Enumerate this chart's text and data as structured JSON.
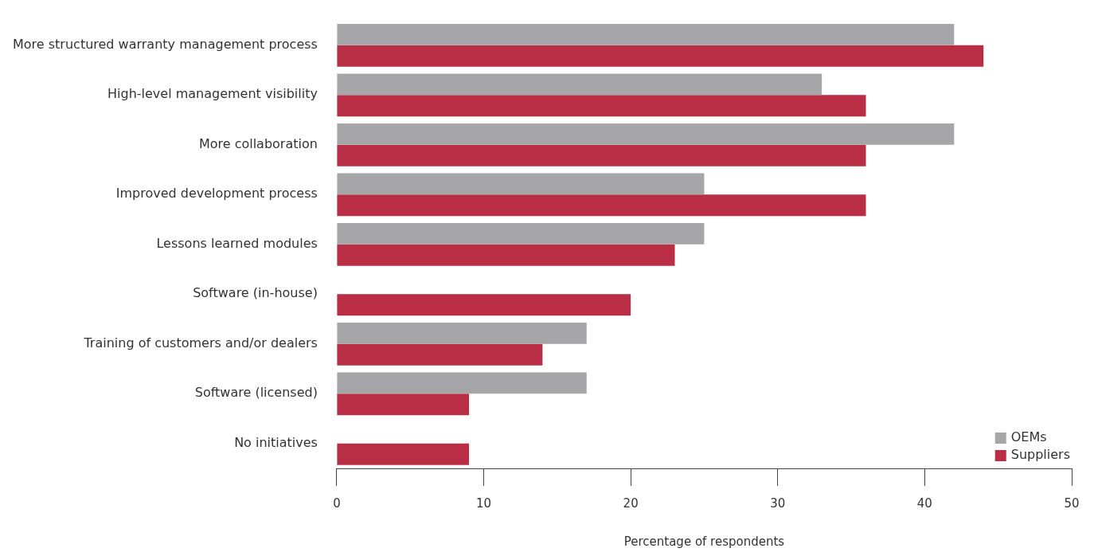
{
  "chart_data": {
    "type": "bar",
    "orientation": "horizontal",
    "xlabel": "Percentage of respondents",
    "categories": [
      "More structured warranty management process",
      "High-level management visibility",
      "More collaboration",
      "Improved development process",
      "Lessons learned modules",
      "Software (in-house)",
      "Training of customers and/or dealers",
      "Software (licensed)",
      "No initiatives"
    ],
    "series": [
      {
        "name": "OEMs",
        "color": "#a6a6a9",
        "values": [
          42,
          33,
          42,
          25,
          25,
          0,
          17,
          17,
          0
        ]
      },
      {
        "name": "Suppliers",
        "color": "#b92d45",
        "values": [
          44,
          36,
          36,
          36,
          23,
          20,
          14,
          9,
          9
        ]
      }
    ],
    "xlim": [
      0,
      50
    ],
    "xticks": [
      0,
      10,
      20,
      30,
      40,
      50
    ],
    "grid": false,
    "legend": "bottom right"
  }
}
